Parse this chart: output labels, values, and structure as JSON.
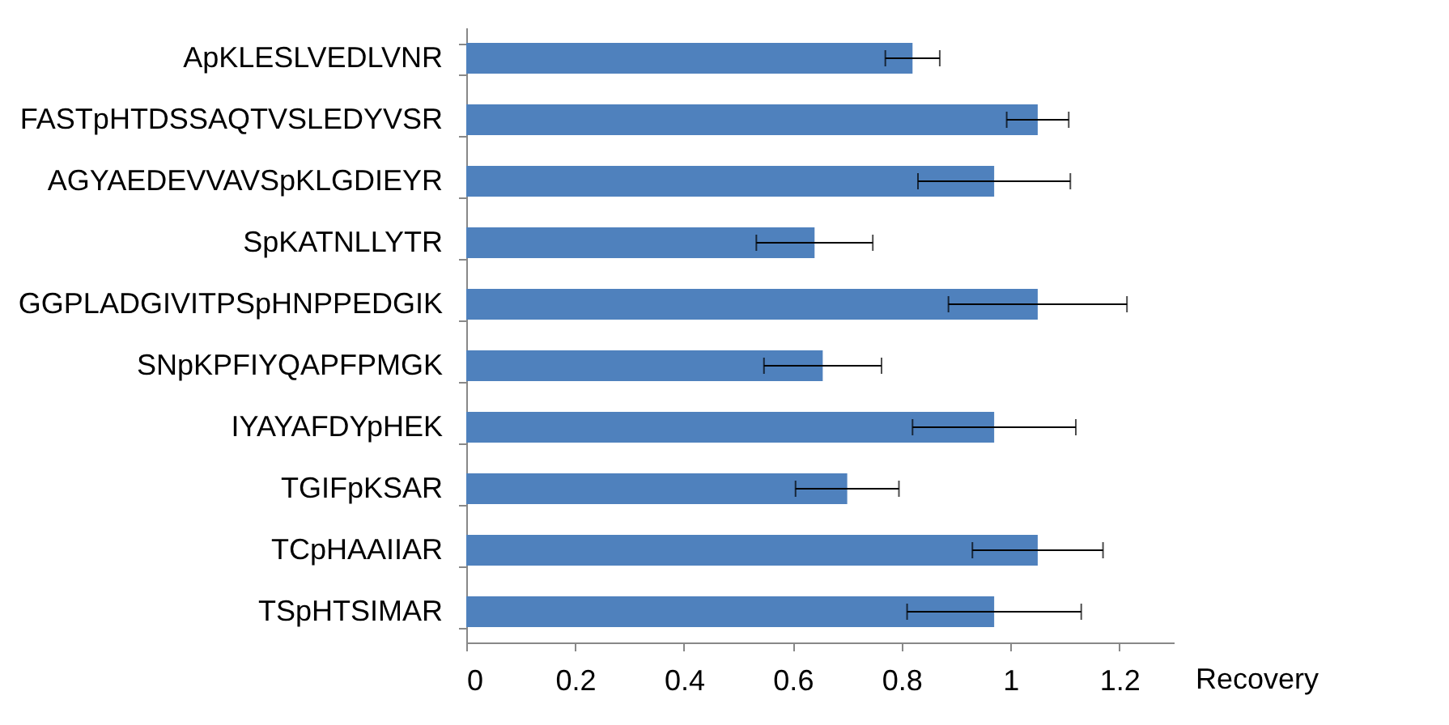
{
  "chart_data": {
    "type": "bar",
    "orientation": "horizontal",
    "xlabel": "Recovery",
    "categories": [
      "ApKLESLVEDLVNR",
      "FASTpHTDSSAQTVSLEDYVSR",
      "AGYAEDEVVAVSpKLGDIEYR",
      "SpKATNLLYTR",
      "GGPLADGIVITPSpHNPPEDGIK",
      "SNpKPFIYQAPFPMGK",
      "IYAYAFDYpHEK",
      "TGIFpKSAR",
      "TCpHAAIIAR",
      "TSpHTSIMAR"
    ],
    "values": [
      0.82,
      1.05,
      0.97,
      0.64,
      1.05,
      0.655,
      0.97,
      0.7,
      1.05,
      0.97
    ],
    "errors": [
      0.05,
      0.057,
      0.14,
      0.107,
      0.164,
      0.108,
      0.15,
      0.095,
      0.12,
      0.16
    ],
    "color": "#4f81bd",
    "xlim": [
      0,
      1.3
    ],
    "xticks": [
      0,
      0.2,
      0.4,
      0.6,
      0.8,
      1,
      1.2
    ],
    "grid": false
  }
}
